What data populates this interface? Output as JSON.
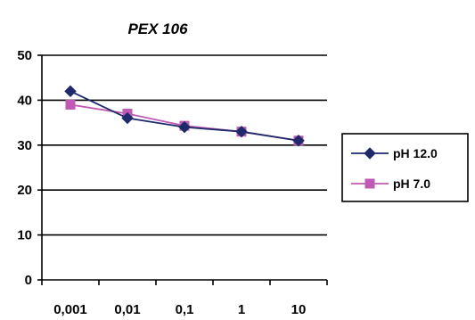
{
  "chart_data": {
    "type": "line",
    "title": "PEX 106",
    "xlabel": "",
    "ylabel": "",
    "categories": [
      "0,001",
      "0,01",
      "0,1",
      "1",
      "10"
    ],
    "y_ticks": [
      "0",
      "10",
      "20",
      "30",
      "40",
      "50"
    ],
    "ylim": [
      0,
      50
    ],
    "grid": true,
    "legend_position": "right",
    "series": [
      {
        "name": "pH 12.0",
        "color": "#1f2a6b",
        "marker": "diamond",
        "values": [
          42,
          36,
          34,
          33,
          31
        ]
      },
      {
        "name": "pH 7.0",
        "color": "#c05ab5",
        "marker": "square",
        "values": [
          39,
          37,
          34.3,
          33,
          31
        ]
      }
    ]
  }
}
